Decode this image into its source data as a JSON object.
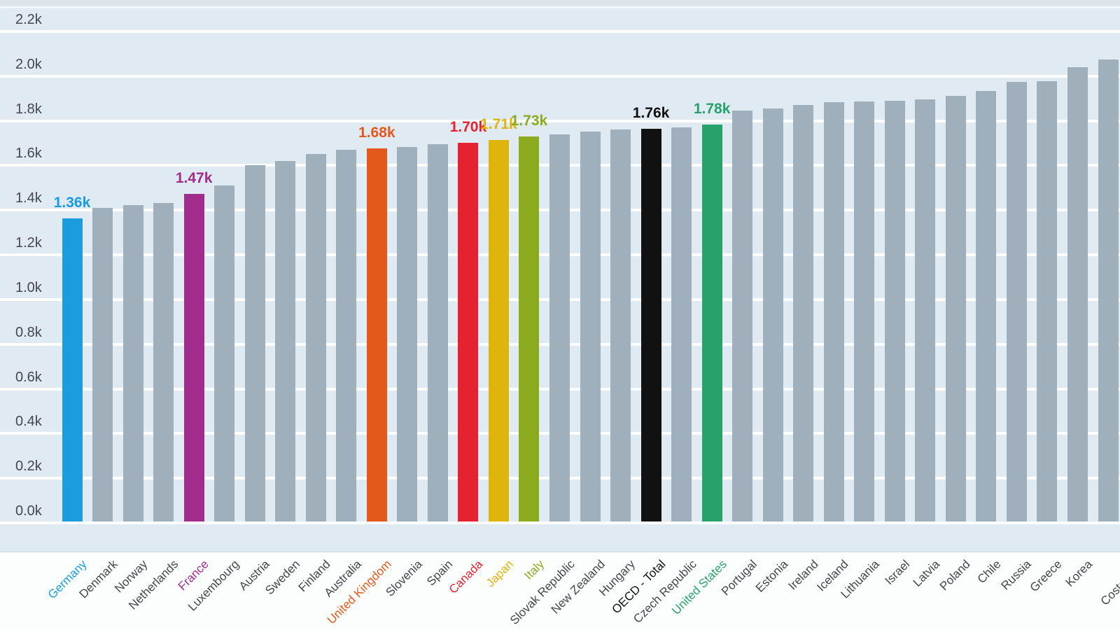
{
  "chart_data": {
    "type": "bar",
    "title": "",
    "ylabel": "",
    "xlabel": "",
    "ylim": [
      0,
      2200
    ],
    "ytick_step": 200,
    "y_ticks": [
      "2.2k",
      "2.0k",
      "1.8k",
      "1.6k",
      "1.4k",
      "1.2k",
      "1.0k",
      "0.8k",
      "0.6k",
      "0.4k",
      "0.2k",
      "0.0k"
    ],
    "grid": "horizontal-white-lines",
    "legend": "none",
    "categories": [
      "Germany",
      "Denmark",
      "Norway",
      "Netherlands",
      "France",
      "Luxembourg",
      "Austria",
      "Sweden",
      "Finland",
      "Australia",
      "United Kingdom",
      "Slovenia",
      "Spain",
      "Canada",
      "Japan",
      "Italy",
      "Slovak Republic",
      "New Zealand",
      "Hungary",
      "OECD - Total",
      "Czech Republic",
      "United States",
      "Portugal",
      "Estonia",
      "Ireland",
      "Iceland",
      "Lithuania",
      "Israel",
      "Latvia",
      "Poland",
      "Chile",
      "Russia",
      "Greece",
      "Korea",
      "Costa Rica"
    ],
    "values": [
      1363,
      1410,
      1424,
      1433,
      1472,
      1512,
      1601,
      1621,
      1653,
      1669,
      1676,
      1684,
      1695,
      1703,
      1713,
      1730,
      1740,
      1752,
      1761,
      1763,
      1770,
      1783,
      1845,
      1855,
      1870,
      1883,
      1886,
      1889,
      1895,
      1912,
      1933,
      1974,
      1976,
      2040,
      2075
    ],
    "value_labels": {
      "Germany": "1.36k",
      "France": "1.47k",
      "United Kingdom": "1.68k",
      "Canada": "1.70k",
      "Japan": "1.71k",
      "Italy": "1.73k",
      "OECD - Total": "1.76k",
      "United States": "1.78k"
    },
    "highlight_colors": {
      "Germany": "#1a9cde",
      "France": "#a02c8c",
      "United Kingdom": "#e5581b",
      "Canada": "#e52330",
      "Japan": "#dfb40c",
      "Italy": "#8aab1e",
      "OECD - Total": "#111111",
      "United States": "#27a26a"
    },
    "style": {
      "bar_default": "#9fb0bc",
      "plot_bg": "#e0eaf2",
      "gridline": "#ffffff",
      "axis_text": "#42474c",
      "below_plot_bg": "#fcfdfd"
    }
  }
}
